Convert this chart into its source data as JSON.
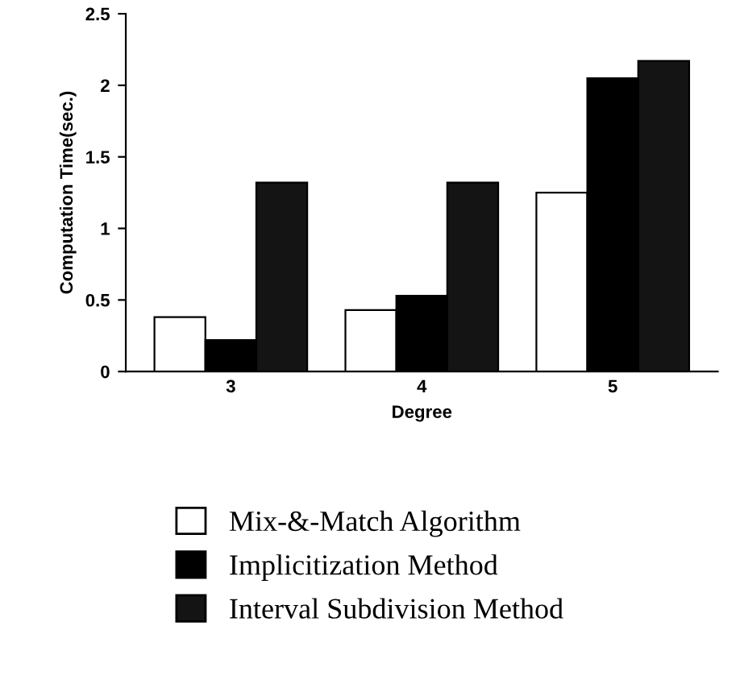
{
  "chart_data": {
    "type": "bar",
    "xlabel": "Degree",
    "ylabel": "Computation Time(sec.)",
    "categories": [
      "3",
      "4",
      "5"
    ],
    "series": [
      {
        "name": "Mix-&-Match Algorithm",
        "color": "#ffffff",
        "values": [
          0.38,
          0.43,
          1.25
        ]
      },
      {
        "name": "Implicitization Method",
        "color": "#000000",
        "values": [
          0.22,
          0.53,
          2.05
        ]
      },
      {
        "name": "Interval Subdivision Method",
        "color": "#141414",
        "values": [
          1.32,
          1.32,
          2.17
        ]
      }
    ],
    "ylim": [
      0,
      2.5
    ],
    "yticks": [
      0,
      0.5,
      1,
      1.5,
      2,
      2.5
    ],
    "grid": false,
    "legend": "bottom"
  }
}
